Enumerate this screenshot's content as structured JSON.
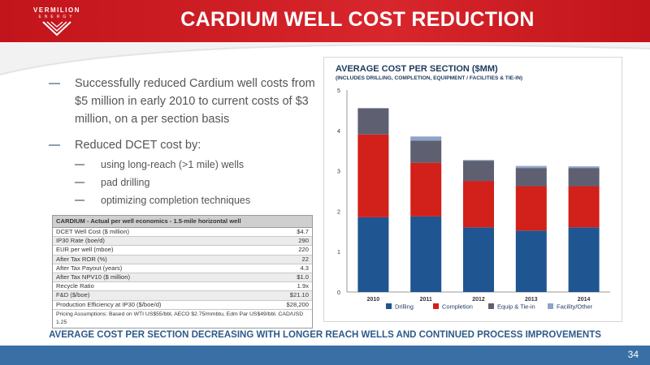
{
  "header": {
    "logo_name": "VERMILION",
    "logo_sub": "ENERGY",
    "title": "CARDIUM WELL COST REDUCTION"
  },
  "bullets": {
    "main1": "Successfully reduced Cardium well costs from $5 million in early 2010 to current costs of $3 million, on a per section basis",
    "main2": "Reduced DCET cost by:",
    "subs": [
      "using long-reach (>1 mile) wells",
      "pad drilling",
      "optimizing completion techniques"
    ]
  },
  "table": {
    "title": "CARDIUM - Actual per well economics - 1.5-mile horizontal well",
    "rows": [
      {
        "label": "DCET Well Cost ($ million)",
        "value": "$4.7"
      },
      {
        "label": "IP30 Rate (boe/d)",
        "value": "290"
      },
      {
        "label": "EUR per well (mboe)",
        "value": "220"
      },
      {
        "label": "After Tax ROR (%)",
        "value": "22"
      },
      {
        "label": "After Tax Payout (years)",
        "value": "4.3"
      },
      {
        "label": "After Tax NPV10 ($ million)",
        "value": "$1.0"
      },
      {
        "label": "Recycle Ratio",
        "value": "1.9x"
      },
      {
        "label": "F&D ($/boe)",
        "value": "$21.10"
      },
      {
        "label": "Production Efficiency at IP30 ($/boe/d)",
        "value": "$28,200"
      }
    ],
    "footnote": "Pricing Assumptions: Based on WTI US$55/bbl, AECO $2.75/mmbtu, Edm Par US$49/bbl. CAD/USD 1.25"
  },
  "chart_data": {
    "type": "bar",
    "stacked": true,
    "title": "AVERAGE COST PER SECTION ($MM)",
    "subtitle": "(INCLUDES DRILLING, COMPLETION, EQUIPMENT / FACILITIES & TIE-IN)",
    "categories": [
      "2010",
      "2011",
      "2012",
      "2013",
      "2014"
    ],
    "series": [
      {
        "name": "Drilling",
        "color": "#1f5590",
        "values": [
          1.85,
          1.87,
          1.6,
          1.52,
          1.6
        ]
      },
      {
        "name": "Completion",
        "color": "#d2201a",
        "values": [
          2.05,
          1.33,
          1.15,
          1.1,
          1.02
        ]
      },
      {
        "name": "Equip & Tie-in",
        "color": "#5e6072",
        "values": [
          0.65,
          0.55,
          0.5,
          0.45,
          0.45
        ]
      },
      {
        "name": "Facility/Other",
        "color": "#8da4c8",
        "values": [
          0.0,
          0.1,
          0.02,
          0.05,
          0.04
        ]
      }
    ],
    "yticks": [
      "0",
      "1",
      "2",
      "3",
      "4",
      "5"
    ],
    "ylim": [
      0,
      5
    ],
    "grid": false,
    "legend_position": "bottom"
  },
  "banner": "AVERAGE COST PER SECTION DECREASING WITH LONGER REACH WELLS AND CONTINUED PROCESS IMPROVEMENTS",
  "page_number": "34"
}
